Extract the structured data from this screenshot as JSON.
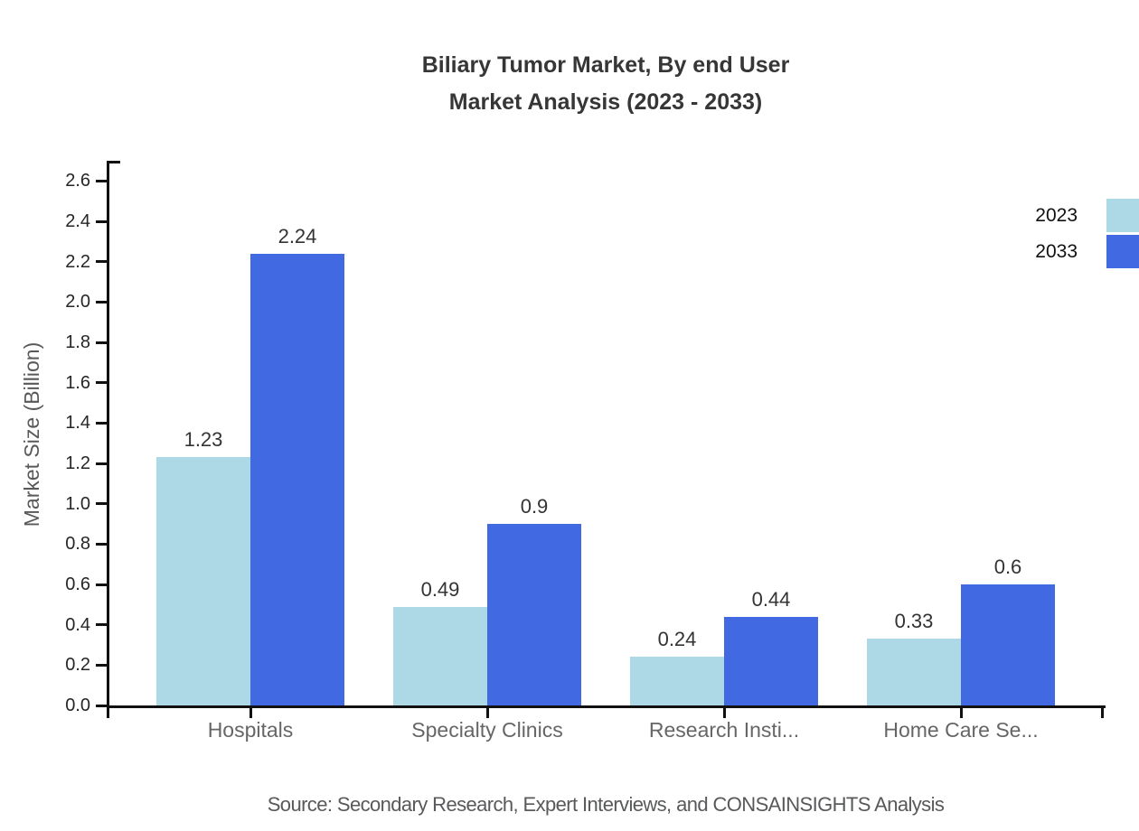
{
  "title": {
    "line1": "Biliary Tumor Market, By end User",
    "line2": "Market Analysis (2023 - 2033)"
  },
  "source": "Source: Secondary Research, Expert Interviews, and CONSAINSIGHTS Analysis",
  "chart_data": {
    "type": "bar",
    "categories": [
      "Hospitals",
      "Specialty Clinics",
      "Research Insti...",
      "Home Care Se..."
    ],
    "series": [
      {
        "name": "2023",
        "color": "#ADD8E6",
        "values": [
          1.23,
          0.49,
          0.24,
          0.33
        ]
      },
      {
        "name": "2033",
        "color": "#4169E1",
        "values": [
          2.24,
          0.9,
          0.44,
          0.6
        ]
      }
    ],
    "title": "Biliary Tumor Market, By end User Market Analysis (2023 - 2033)",
    "xlabel": "",
    "ylabel": "Market Size (Billion)",
    "ylim": [
      0,
      2.6
    ],
    "ytick_step": 0.2,
    "grid": false,
    "legend_position": "top-right",
    "value_labels_shown": true,
    "axis_color": "#111111",
    "category_label_color": "#666666"
  }
}
